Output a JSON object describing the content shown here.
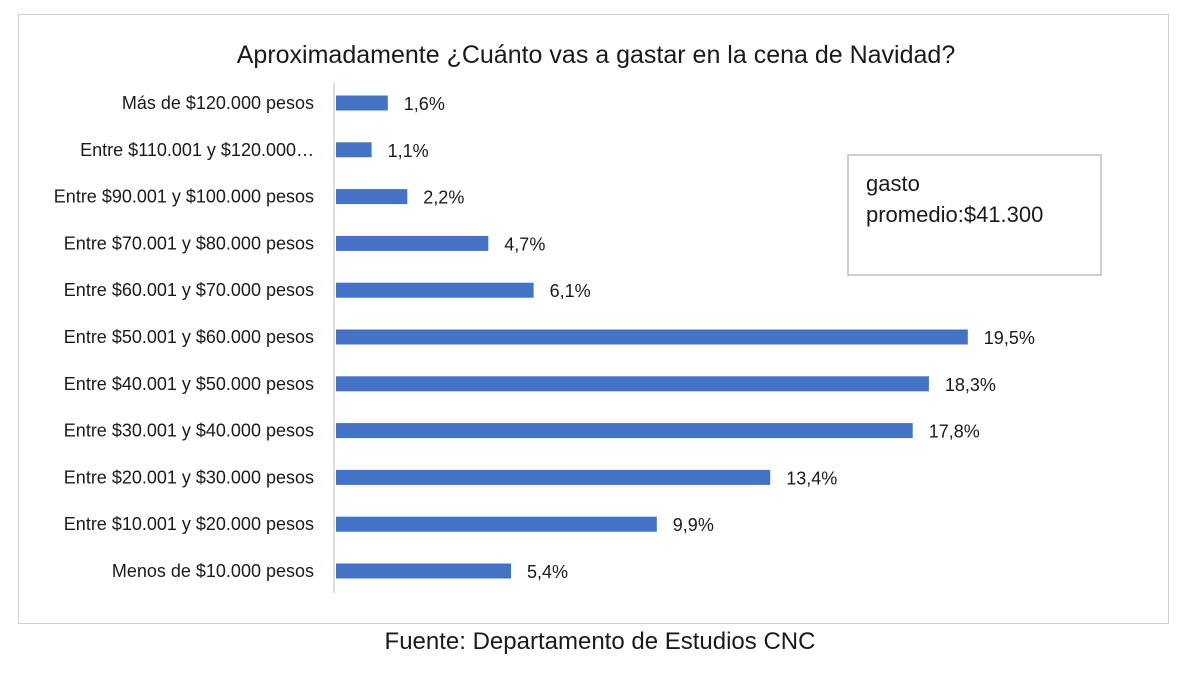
{
  "chart_data": {
    "type": "bar",
    "orientation": "horizontal",
    "title": "Aproximadamente ¿Cuánto vas a gastar en la cena de Navidad?",
    "categories": [
      "Más de $120.000 pesos",
      "Entre $110.001 y $120.000…",
      "Entre $90.001 y $100.000 pesos",
      "Entre $70.001 y $80.000 pesos",
      "Entre $60.001 y $70.000 pesos",
      "Entre $50.001 y $60.000 pesos",
      "Entre $40.001 y $50.000 pesos",
      "Entre $30.001 y $40.000 pesos",
      "Entre $20.001 y $30.000 pesos",
      "Entre $10.001 y $20.000 pesos",
      "Menos de $10.000 pesos"
    ],
    "values": [
      1.6,
      1.1,
      2.2,
      4.7,
      6.1,
      19.5,
      18.3,
      17.8,
      13.4,
      9.9,
      5.4
    ],
    "value_labels": [
      "1,6%",
      "1,1%",
      "2,2%",
      "4,7%",
      "6,1%",
      "19,5%",
      "18,3%",
      "17,8%",
      "13,4%",
      "9,9%",
      "5,4%"
    ],
    "unit": "%",
    "xlim": [
      0,
      20
    ],
    "grid": false,
    "legend": "none",
    "bar_color": "#4472c4",
    "annotation": {
      "line1": "gasto",
      "line2": "promedio:$41.300"
    }
  },
  "source": "Fuente: Departamento de Estudios CNC"
}
